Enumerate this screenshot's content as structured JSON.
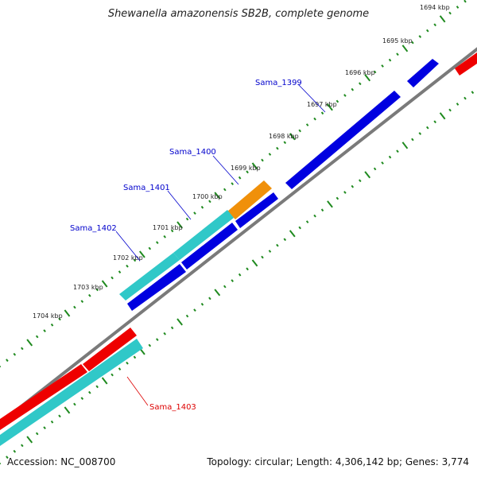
{
  "title": "Shewanella amazonensis SB2B, complete genome",
  "footer": {
    "accession": "Accession: NC_008700",
    "summary": "Topology: circular; Length: 4,306,142 bp; Genes: 3,774"
  },
  "colors": {
    "backbone": "#7a7a7a",
    "tick": "#1f8a1f",
    "forward_gene": "#0000e0",
    "orange_gene": "#f0900a",
    "cyan_gene": "#30c8c8",
    "red_gene": "#ee0000",
    "label_blue": "#0000cc",
    "label_red": "#dd0000"
  },
  "scale": {
    "unit": "kbp",
    "labels": [
      "1694 kbp",
      "1695 kbp",
      "1696 kbp",
      "1697 kbp",
      "1698 kbp",
      "1699 kbp",
      "1700 kbp",
      "1701 kbp",
      "1702 kbp",
      "1703 kbp",
      "1704 kbp"
    ]
  },
  "genes": [
    {
      "name": "Sama_1399",
      "label_color": "blue"
    },
    {
      "name": "Sama_1400",
      "label_color": "blue"
    },
    {
      "name": "Sama_1401",
      "label_color": "blue"
    },
    {
      "name": "Sama_1402",
      "label_color": "blue"
    },
    {
      "name": "Sama_1403",
      "label_color": "red"
    }
  ]
}
